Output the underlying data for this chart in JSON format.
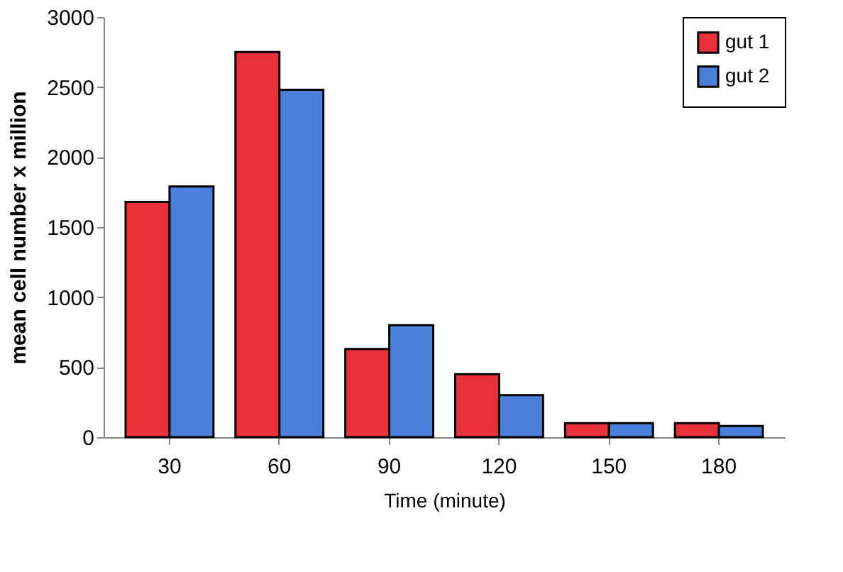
{
  "chart_data": {
    "type": "bar",
    "xlabel": "Time (minute)",
    "ylabel": "mean cell number x million",
    "categories": [
      "30",
      "60",
      "90",
      "120",
      "150",
      "180"
    ],
    "series": [
      {
        "name": "gut 1",
        "color": "#e8303a",
        "values": [
          1680,
          2750,
          630,
          450,
          100,
          100
        ]
      },
      {
        "name": "gut 2",
        "color": "#4a7fdc",
        "values": [
          1790,
          2480,
          800,
          300,
          100,
          80
        ]
      }
    ],
    "ylim": [
      0,
      3000
    ],
    "yticks": [
      0,
      500,
      1000,
      1500,
      2000,
      2500,
      3000
    ],
    "grid": false,
    "legend": "top right"
  }
}
